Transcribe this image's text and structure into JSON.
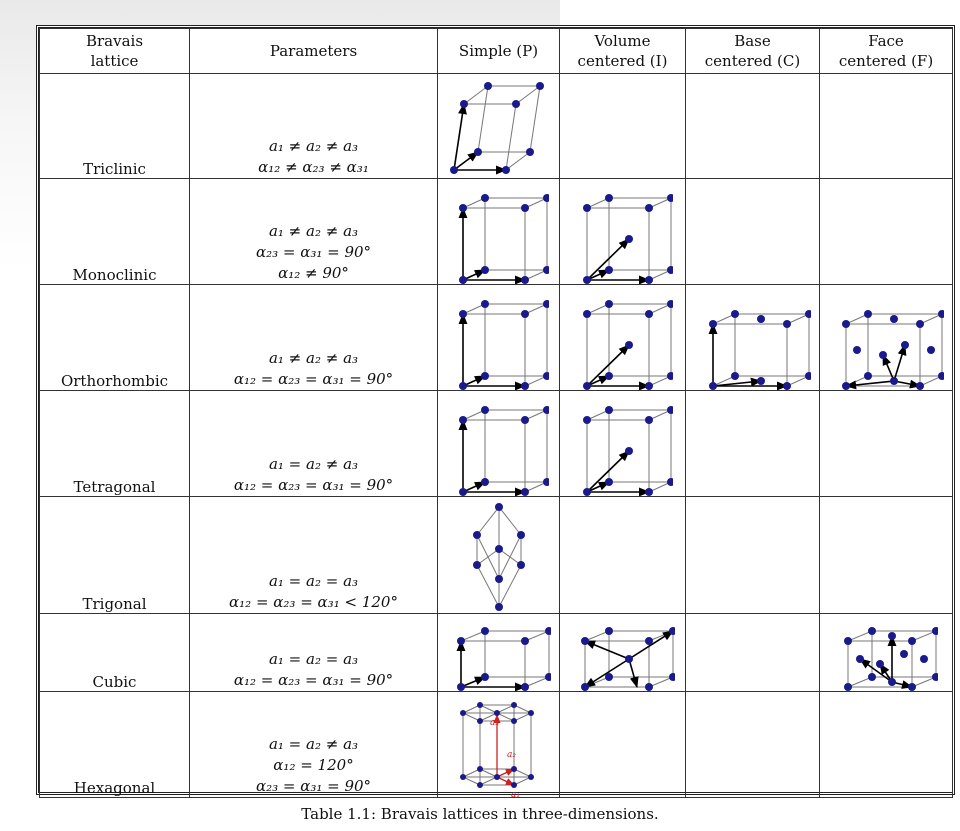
{
  "table": {
    "headers": [
      "Bravais\nlattice",
      "Parameters",
      "Simple (P)",
      "Volume\ncentered (I)",
      "Base\ncentered (C)",
      "Face\ncentered (F)"
    ],
    "rows": [
      {
        "name": "Triclinic",
        "params": [
          "a₁ ≠ a₂ ≠ a₃",
          "α₁₂ ≠ α₂₃ ≠ α₃₁"
        ],
        "cells": [
          "triclinic",
          "",
          "",
          ""
        ]
      },
      {
        "name": "Monoclinic",
        "params": [
          "a₁ ≠ a₂ ≠ a₃",
          "α₂₃ = α₃₁ = 90°",
          "α₁₂ ≠ 90°"
        ],
        "cells": [
          "tall-P",
          "tall-I",
          "",
          ""
        ]
      },
      {
        "name": "Orthorhombic",
        "params": [
          "a₁ ≠ a₂ ≠ a₃",
          "α₁₂ = α₂₃ = α₃₁ = 90°"
        ],
        "cells": [
          "tall-P",
          "tall-I",
          "box-C",
          "box-F"
        ]
      },
      {
        "name": "Tetragonal",
        "params": [
          "a₁ = a₂ ≠ a₃",
          "α₁₂ = α₂₃ = α₃₁ = 90°"
        ],
        "cells": [
          "tall-P",
          "tall-I",
          "",
          ""
        ]
      },
      {
        "name": "Trigonal",
        "params": [
          "a₁ = a₂ = a₃",
          "α₁₂ = α₂₃ = α₃₁ < 120°"
        ],
        "cells": [
          "trigonal",
          "",
          "",
          ""
        ]
      },
      {
        "name": "Cubic",
        "params": [
          "a₁ = a₂ = a₃",
          "α₁₂ = α₂₃ = α₃₁ = 90°"
        ],
        "cells": [
          "cube-P",
          "cube-I",
          "",
          "cube-F"
        ]
      },
      {
        "name": "Hexagonal",
        "params": [
          "a₁ = a₂ ≠ a₃",
          "α₁₂ = 120°",
          "α₂₃ = α₃₁ = 90°"
        ],
        "cells": [
          "hexagonal",
          "",
          "",
          ""
        ]
      }
    ]
  },
  "hex_labels": [
    "a₃",
    "a₂",
    "a₁"
  ],
  "caption": "Table 1.1: Bravais lattices in three-dimensions.",
  "colors": {
    "atom": "#1a1a8c",
    "hex_vector": "#cc2222",
    "edge": "#777777",
    "vector": "#000000"
  }
}
